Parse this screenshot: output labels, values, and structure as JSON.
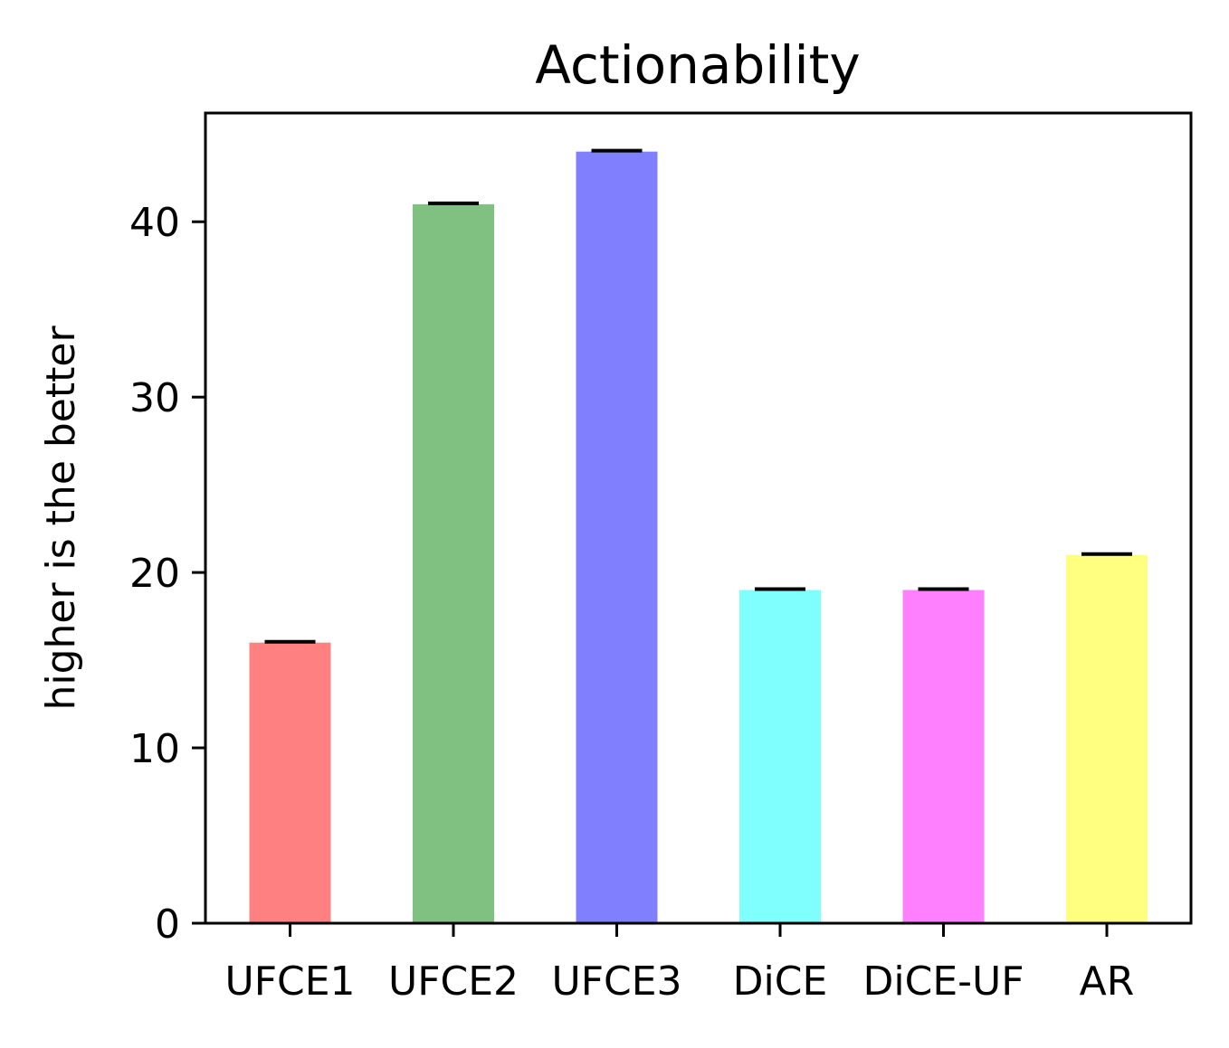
{
  "chart_data": {
    "type": "bar",
    "title": "Actionability",
    "xlabel": "",
    "ylabel": "higher is the better",
    "categories": [
      "UFCE1",
      "UFCE2",
      "UFCE3",
      "DiCE",
      "DiCE-UF",
      "AR"
    ],
    "values": [
      16,
      41,
      44,
      19,
      19,
      21
    ],
    "bar_colors": [
      "#ff8080",
      "#80c080",
      "#8080ff",
      "#80ffff",
      "#ff80ff",
      "#ffff80"
    ],
    "error_bar_color": "#000000",
    "ylim": [
      0,
      46.2
    ],
    "yticks": [
      0,
      10,
      20,
      30,
      40
    ],
    "grid": false,
    "legend": "none"
  }
}
